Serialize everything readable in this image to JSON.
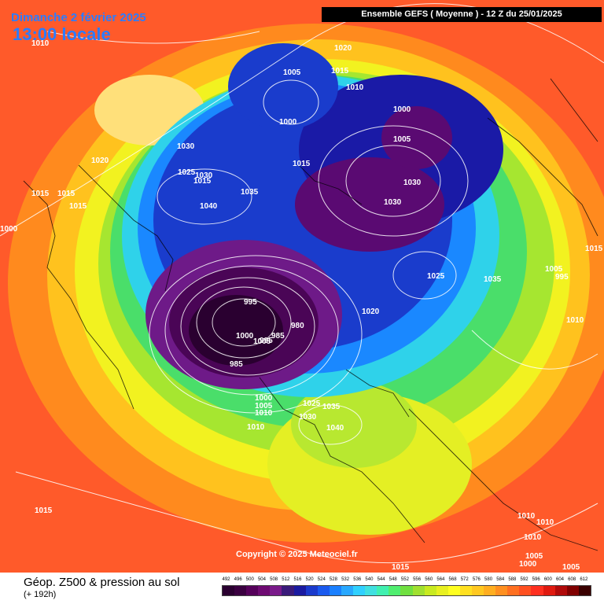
{
  "header": {
    "date": "Dimanche 2 février 2025",
    "local_time": "13:00 locale",
    "run": "Ensemble GEFS  ( Moyenne )  -  12 Z du 25/01/2025"
  },
  "copyright": "Copyright © 2025 Meteociel.fr",
  "footer": {
    "title": "Géop. Z500 & pression au sol",
    "lead": "(+ 192h)"
  },
  "scale": {
    "ticks": [
      "492",
      "496",
      "500",
      "504",
      "508",
      "512",
      "516",
      "520",
      "524",
      "528",
      "532",
      "536",
      "540",
      "544",
      "548",
      "552",
      "556",
      "560",
      "564",
      "568",
      "572",
      "576",
      "580",
      "584",
      "588",
      "592",
      "596",
      "600",
      "604",
      "608",
      "612"
    ],
    "colors": [
      "#2a0030",
      "#3a0040",
      "#55005a",
      "#6e0a72",
      "#7a1a8a",
      "#3a1a7a",
      "#1a1aa0",
      "#1a3acc",
      "#1a5aee",
      "#1a80ff",
      "#28a8ff",
      "#30d0ff",
      "#40e0e0",
      "#40f0b0",
      "#50ee70",
      "#70e040",
      "#a0e030",
      "#c8ea20",
      "#e8f020",
      "#ffff20",
      "#ffe020",
      "#ffc820",
      "#ffae20",
      "#ff9020",
      "#ff7020",
      "#ff5020",
      "#ff3020",
      "#e01a10",
      "#b00a0a",
      "#800000",
      "#3a0000"
    ]
  },
  "isobar_labels": [
    "1010",
    "1020",
    "1005",
    "1015",
    "1010",
    "1000",
    "1000",
    "1005",
    "1030",
    "1020",
    "1015",
    "1025",
    "1030",
    "1015",
    "1035",
    "1030",
    "1015",
    "1015",
    "1040",
    "1015",
    "1030",
    "1025",
    "1035",
    "1005",
    "995",
    "1000",
    "1010",
    "995",
    "1000",
    "980",
    "985",
    "1005",
    "995",
    "985",
    "1020",
    "1010",
    "1000",
    "1005",
    "1010",
    "1025",
    "1035",
    "1030",
    "1040",
    "1015",
    "1015",
    "1010",
    "1010",
    "1010",
    "1005",
    "1000",
    "1005",
    "1015"
  ]
}
